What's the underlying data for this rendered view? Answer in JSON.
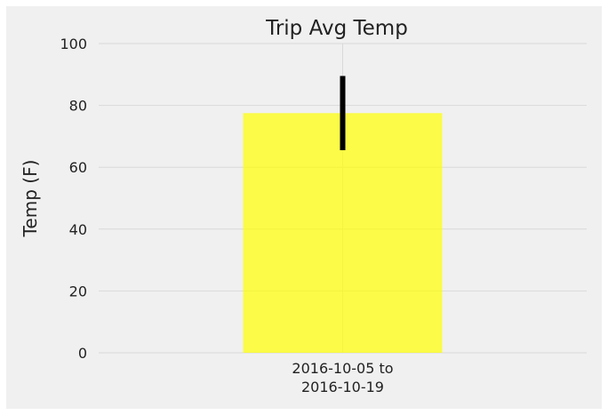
{
  "chart_data": {
    "type": "bar",
    "title": "Trip Avg Temp",
    "ylabel": "Temp (F)",
    "xlabel": "",
    "categories": [
      "2016-10-05 to\n2016-10-19"
    ],
    "values": [
      77.5
    ],
    "error": [
      12
    ],
    "ylim": [
      0,
      100
    ],
    "yticks": [
      0,
      20,
      40,
      60,
      80,
      100
    ],
    "grid": true,
    "bar_color": "#ffff00",
    "error_color": "#000000",
    "background_color": "#f0f0f0",
    "grid_color": "#d9d9d9"
  }
}
